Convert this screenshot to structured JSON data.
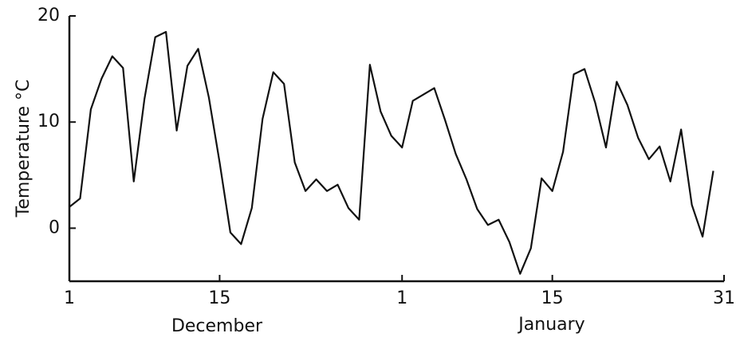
{
  "chart_data": {
    "type": "line",
    "y_label": "Temperature °C",
    "month_labels": [
      "December",
      "January"
    ],
    "x": [
      0,
      1,
      2,
      3,
      4,
      5,
      6,
      7,
      8,
      9,
      10,
      11,
      12,
      13,
      14,
      15,
      16,
      17,
      18,
      19,
      20,
      21,
      22,
      23,
      24,
      25,
      26,
      27,
      28,
      29,
      30,
      31,
      32,
      33,
      34,
      35,
      36,
      37,
      38,
      39,
      40,
      41,
      42,
      43,
      44,
      45,
      46,
      47,
      48,
      49,
      50,
      51,
      52,
      53,
      54,
      55,
      56,
      57,
      58,
      59,
      60
    ],
    "values": [
      2.0,
      2.8,
      11.2,
      14.1,
      16.2,
      15.1,
      4.4,
      12.2,
      18.0,
      18.5,
      9.2,
      15.3,
      16.9,
      12.3,
      6.2,
      -0.4,
      -1.5,
      1.9,
      10.3,
      14.7,
      13.6,
      6.2,
      3.5,
      4.6,
      3.5,
      4.1,
      1.9,
      0.8,
      15.4,
      11.0,
      8.7,
      7.6,
      12.0,
      12.6,
      13.2,
      10.2,
      7.0,
      4.6,
      1.8,
      0.3,
      0.8,
      -1.3,
      -4.3,
      -1.9,
      4.7,
      3.5,
      7.2,
      14.5,
      15.0,
      11.8,
      7.6,
      13.8,
      11.6,
      8.5,
      6.5,
      7.7,
      4.4,
      9.3,
      2.2,
      -0.8,
      5.4
    ],
    "color": "#111111",
    "xlim": [
      0,
      61
    ],
    "xticks": [
      {
        "value": 0,
        "label": "1"
      },
      {
        "value": 14,
        "label": "15"
      },
      {
        "value": 31,
        "label": "1"
      },
      {
        "value": 45,
        "label": "15"
      },
      {
        "value": 61,
        "label": "31"
      }
    ],
    "ylim": [
      -5,
      20
    ],
    "yticks": [
      0,
      10,
      20
    ]
  }
}
